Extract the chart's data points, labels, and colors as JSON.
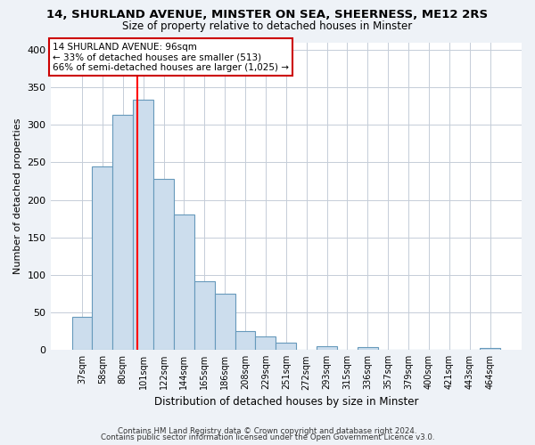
{
  "title": "14, SHURLAND AVENUE, MINSTER ON SEA, SHEERNESS, ME12 2RS",
  "subtitle": "Size of property relative to detached houses in Minster",
  "xlabel": "Distribution of detached houses by size in Minster",
  "ylabel": "Number of detached properties",
  "bar_labels": [
    "37sqm",
    "58sqm",
    "80sqm",
    "101sqm",
    "122sqm",
    "144sqm",
    "165sqm",
    "186sqm",
    "208sqm",
    "229sqm",
    "251sqm",
    "272sqm",
    "293sqm",
    "315sqm",
    "336sqm",
    "357sqm",
    "379sqm",
    "400sqm",
    "421sqm",
    "443sqm",
    "464sqm"
  ],
  "bar_values": [
    44,
    245,
    313,
    333,
    228,
    180,
    91,
    75,
    25,
    18,
    10,
    0,
    5,
    0,
    4,
    0,
    0,
    0,
    0,
    0,
    3
  ],
  "bar_color": "#ccdded",
  "bar_edge_color": "#6699bb",
  "vline_color": "red",
  "vline_pos": 2.73,
  "annotation_line1": "14 SHURLAND AVENUE: 96sqm",
  "annotation_line2": "← 33% of detached houses are smaller (513)",
  "annotation_line3": "66% of semi-detached houses are larger (1,025) →",
  "annotation_box_color": "white",
  "annotation_box_edge": "#cc0000",
  "ylim": [
    0,
    410
  ],
  "yticks": [
    0,
    50,
    100,
    150,
    200,
    250,
    300,
    350,
    400
  ],
  "footer1": "Contains HM Land Registry data © Crown copyright and database right 2024.",
  "footer2": "Contains public sector information licensed under the Open Government Licence v3.0.",
  "bg_color": "#eef2f7",
  "plot_bg_color": "white",
  "grid_color": "#c5cdd8"
}
